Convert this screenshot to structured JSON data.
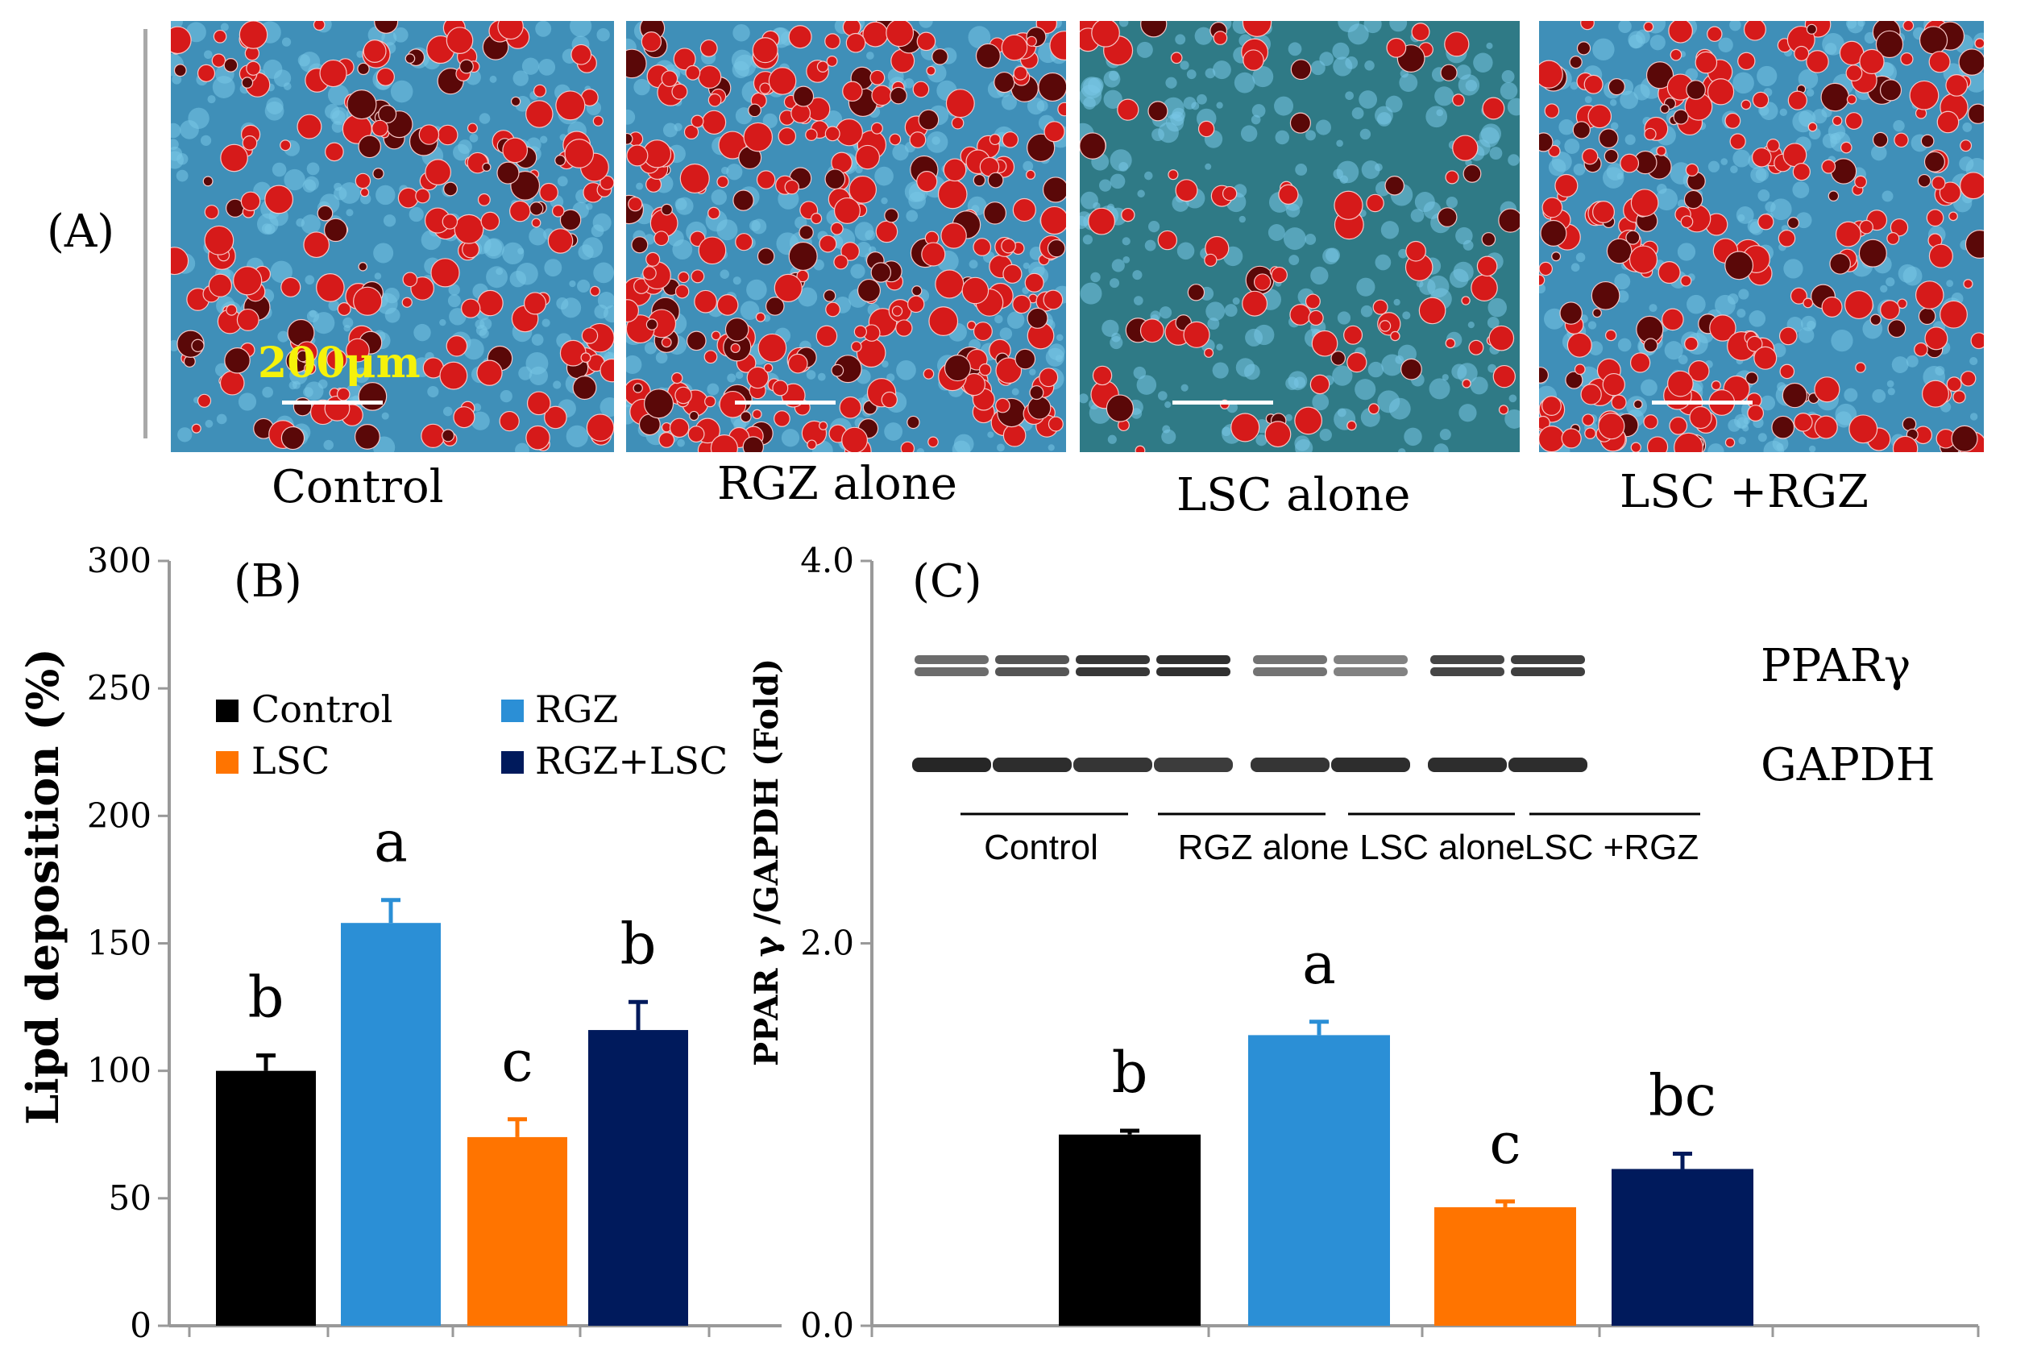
{
  "panelA": {
    "letter": "(A)",
    "scale_bar_label": "200μm",
    "images": [
      {
        "label": "Control"
      },
      {
        "label": "RGZ alone"
      },
      {
        "label": "LSC alone"
      },
      {
        "label": "LSC +RGZ"
      }
    ],
    "colors": {
      "stain": "#d61a1a",
      "dark_stain": "#5a0808",
      "background": "#3f8fb8",
      "cell": "#78c6e6"
    }
  },
  "chart_data": [
    {
      "panel": "(B)",
      "type": "bar",
      "ylabel": "Lipd deposition (%)",
      "ylim": [
        0,
        300
      ],
      "yticks": [
        "0",
        "50",
        "100",
        "150",
        "200",
        "250",
        "300"
      ],
      "categories": [
        "Control",
        "RGZ",
        "LSC",
        "RGZ+LSC"
      ],
      "values": [
        100,
        158,
        74,
        116
      ],
      "errors": [
        6,
        9,
        7,
        11
      ],
      "significance": [
        "b",
        "a",
        "c",
        "b"
      ],
      "colors": [
        "#000000",
        "#2b8fd6",
        "#ff7400",
        "#001a5c"
      ],
      "legend": [
        "Control",
        "RGZ",
        "LSC",
        "RGZ+LSC"
      ]
    },
    {
      "panel": "(C)",
      "type": "bar",
      "ylabel": "PPAR γ /GAPDH (Fold)",
      "ylim": [
        0,
        4
      ],
      "yticks": [
        "0.0",
        "2.0",
        "4.0"
      ],
      "categories": [
        "Control",
        "RGZ",
        "LSC",
        "RGZ+LSC"
      ],
      "values": [
        1.0,
        1.52,
        0.62,
        0.82
      ],
      "errors": [
        0.02,
        0.07,
        0.03,
        0.08
      ],
      "significance": [
        "b",
        "a",
        "c",
        "bc"
      ],
      "colors": [
        "#000000",
        "#2b8fd6",
        "#ff7400",
        "#001a5c"
      ]
    }
  ],
  "western_blot": {
    "bands": [
      "PPARγ",
      "GAPDH"
    ],
    "groups": [
      "Control",
      "RGZ alone",
      "LSC alone",
      "LSC +RGZ"
    ],
    "ppar_intensity": [
      0.55,
      0.7,
      0.9,
      0.95,
      0.5,
      0.4,
      0.8,
      0.85
    ],
    "gapdh_intensity": [
      0.95,
      0.9,
      0.85,
      0.8,
      0.85,
      0.9,
      0.9,
      0.9
    ]
  }
}
